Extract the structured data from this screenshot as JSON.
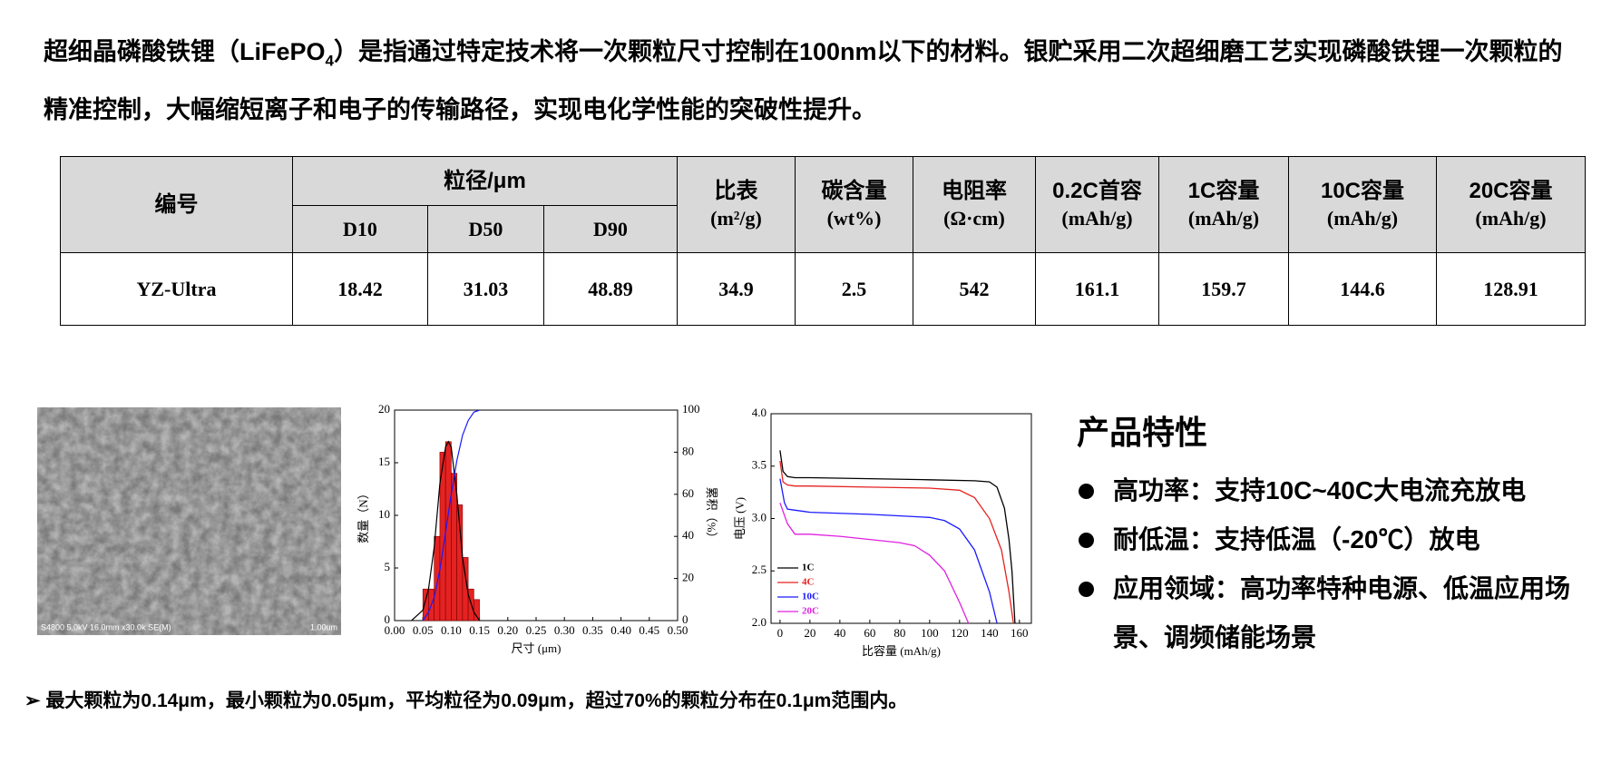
{
  "intro": {
    "before": "超细晶磷酸铁锂（LiFePO",
    "sub": "4",
    "after": "）是指通过特定技术将一次颗粒尺寸控制在100nm以下的材料。银贮采用二次超细磨工艺实现磷酸铁锂一次颗粒的精准控制，大幅缩短离子和电子的传输路径，实现电化学性能的突破性提升。"
  },
  "table": {
    "id_header": "编号",
    "group_header": "粒径/μm",
    "sub_headers": [
      "D10",
      "D50",
      "D90"
    ],
    "metrics": [
      {
        "name": "比表",
        "unit": "(m²/g)"
      },
      {
        "name": "碳含量",
        "unit": "(wt%)"
      },
      {
        "name": "电阻率",
        "unit": "(Ω·cm)"
      },
      {
        "name": "0.2C首容",
        "unit": "(mAh/g)"
      },
      {
        "name": "1C容量",
        "unit": "(mAh/g)"
      },
      {
        "name": "10C容量",
        "unit": "(mAh/g)"
      },
      {
        "name": "20C容量",
        "unit": "(mAh/g)"
      }
    ],
    "rows": [
      [
        "YZ-Ultra",
        18.42,
        31.03,
        48.89,
        34.9,
        2.5,
        542,
        161.1,
        159.7,
        144.6,
        128.91
      ]
    ]
  },
  "sem_image": {
    "caption": "S4800 5.0kV 16.0mm x30.0k SE(M)",
    "scale": "1.00um"
  },
  "chart_data": [
    {
      "type": "histogram",
      "xlabel": "尺寸 (μm)",
      "ylabel": "数量（N）",
      "y2label": "累积（%）",
      "bins": [
        0.05,
        0.06,
        0.07,
        0.08,
        0.09,
        0.1,
        0.11,
        0.12,
        0.13,
        0.14,
        0.15
      ],
      "values": [
        3,
        3,
        8,
        16,
        17,
        14,
        11,
        6,
        3,
        2
      ],
      "color": "#e52222",
      "fit": {
        "color": "#000000",
        "x": [
          0.03,
          0.05,
          0.06,
          0.07,
          0.08,
          0.09,
          0.095,
          0.1,
          0.11,
          0.12,
          0.13,
          0.14,
          0.15
        ],
        "values": [
          0,
          1,
          3,
          7,
          13,
          16.5,
          17,
          16.5,
          12,
          6,
          2.5,
          0.8,
          0
        ]
      },
      "cumulative": {
        "color": "#1a1aff",
        "axis": "y2",
        "x": [
          0.05,
          0.06,
          0.07,
          0.08,
          0.09,
          0.1,
          0.11,
          0.12,
          0.13,
          0.14,
          0.15
        ],
        "values": [
          0,
          4,
          11,
          24,
          42,
          60,
          76,
          88,
          95,
          99,
          100
        ]
      },
      "xlim": [
        0,
        0.5
      ],
      "xticks": [
        {
          "value": 0,
          "label": "0.00"
        },
        {
          "value": 0.05,
          "label": "0.05"
        },
        {
          "value": 0.1,
          "label": "0.10"
        },
        {
          "value": 0.15,
          "label": "0.15"
        },
        {
          "value": 0.2,
          "label": "0.20"
        },
        {
          "value": 0.25,
          "label": "0.25"
        },
        {
          "value": 0.3,
          "label": "0.30"
        },
        {
          "value": 0.35,
          "label": "0.35"
        },
        {
          "value": 0.4,
          "label": "0.40"
        },
        {
          "value": 0.45,
          "label": "0.45"
        },
        {
          "value": 0.5,
          "label": "0.50"
        }
      ],
      "ylim": [
        0,
        20
      ],
      "yticks": [
        0,
        5,
        10,
        15,
        20
      ],
      "y2lim": [
        0,
        100
      ],
      "y2ticks": [
        0,
        20,
        40,
        60,
        80,
        100
      ]
    },
    {
      "type": "line",
      "xlabel": "比容量 (mAh/g)",
      "ylabel": "电压 (V)",
      "series": [
        {
          "name": "1C",
          "color": "#000000",
          "x": [
            0,
            2,
            5,
            10,
            20,
            60,
            100,
            130,
            140,
            145,
            150,
            153,
            155,
            157
          ],
          "values": [
            3.65,
            3.45,
            3.4,
            3.39,
            3.39,
            3.38,
            3.37,
            3.36,
            3.35,
            3.3,
            3.1,
            2.8,
            2.5,
            2.0
          ]
        },
        {
          "name": "4C",
          "color": "#e52222",
          "x": [
            0,
            2,
            5,
            10,
            20,
            60,
            100,
            120,
            130,
            140,
            148,
            153,
            156
          ],
          "values": [
            3.55,
            3.35,
            3.32,
            3.31,
            3.31,
            3.3,
            3.29,
            3.27,
            3.2,
            3.0,
            2.7,
            2.3,
            2.0
          ]
        },
        {
          "name": "10C",
          "color": "#1a1aff",
          "x": [
            0,
            3,
            5,
            10,
            20,
            60,
            100,
            110,
            120,
            130,
            140,
            145
          ],
          "values": [
            3.38,
            3.15,
            3.09,
            3.08,
            3.06,
            3.04,
            3.01,
            2.98,
            2.9,
            2.7,
            2.3,
            2.0
          ]
        },
        {
          "name": "20C",
          "color": "#e020e0",
          "x": [
            0,
            5,
            10,
            20,
            40,
            60,
            80,
            90,
            100,
            110,
            120,
            126
          ],
          "values": [
            3.15,
            2.95,
            2.85,
            2.85,
            2.83,
            2.8,
            2.77,
            2.74,
            2.65,
            2.5,
            2.2,
            2.0
          ]
        }
      ],
      "xlim": [
        -6,
        168
      ],
      "xticks": [
        0,
        20,
        40,
        60,
        80,
        100,
        120,
        140,
        160
      ],
      "ylim": [
        2,
        4
      ],
      "yticks": [
        {
          "value": 2,
          "label": "2.0"
        },
        {
          "value": 2.5,
          "label": "2.5"
        },
        {
          "value": 3,
          "label": "3.0"
        },
        {
          "value": 3.5,
          "label": "3.5"
        },
        {
          "value": 4,
          "label": "4.0"
        }
      ]
    }
  ],
  "features": {
    "title": "产品特性",
    "items": [
      "高功率：支持10C~40C大电流充放电",
      "耐低温：支持低温（-20℃）放电",
      "应用领域：高功率特种电源、低温应用场景、调频储能场景"
    ]
  },
  "note": "最大颗粒为0.14μm，最小颗粒为0.05μm，平均粒径为0.09μm，超过70%的颗粒分布在0.1μm范围内。"
}
